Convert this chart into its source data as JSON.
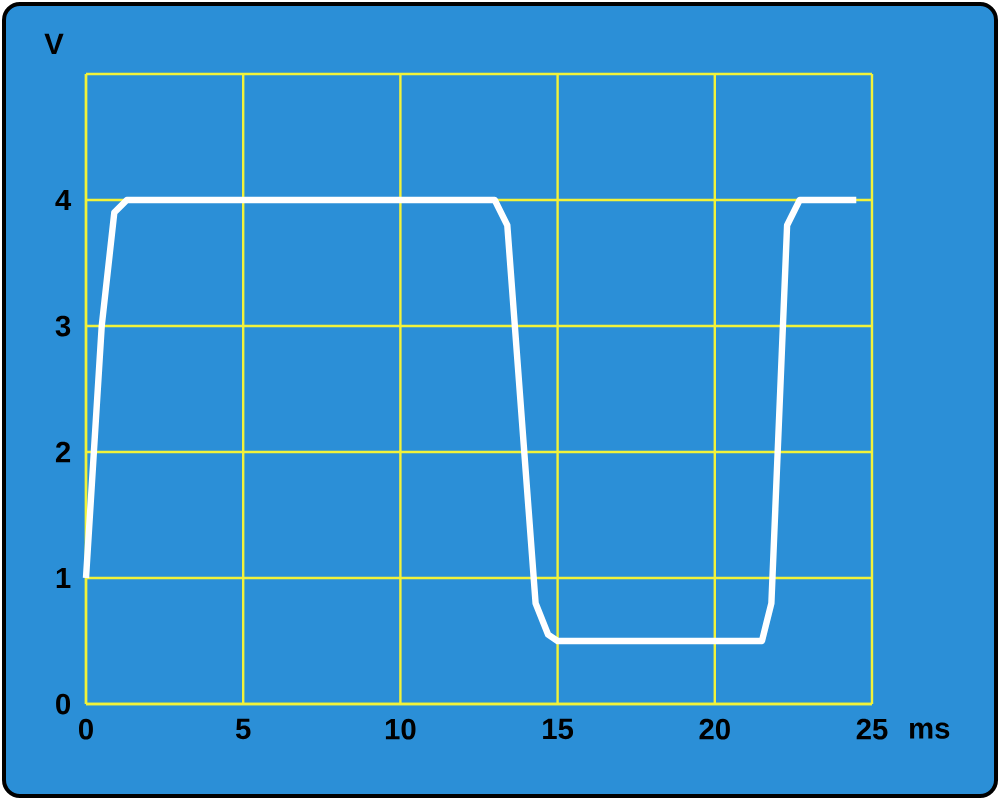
{
  "chart_data": {
    "type": "line",
    "xlabel": "ms",
    "ylabel": "V",
    "x": [
      0,
      0.5,
      0.9,
      1.3,
      13,
      13.4,
      14.3,
      14.7,
      15,
      21.5,
      21.8,
      22.3,
      22.7,
      24.5
    ],
    "series": [
      {
        "color": "#ffffff",
        "values": [
          1,
          3,
          3.9,
          4,
          4,
          3.8,
          0.8,
          0.55,
          0.5,
          0.5,
          0.8,
          3.8,
          4,
          4
        ]
      }
    ],
    "xlim": [
      0,
      25
    ],
    "ylim": [
      0,
      5
    ],
    "xticks": [
      0,
      5,
      10,
      15,
      20,
      25
    ],
    "yticks": [
      0,
      1,
      2,
      3,
      4,
      {
        "value": 5,
        "label": null
      }
    ],
    "grid": true,
    "marker": "none",
    "line_style": "solid"
  }
}
